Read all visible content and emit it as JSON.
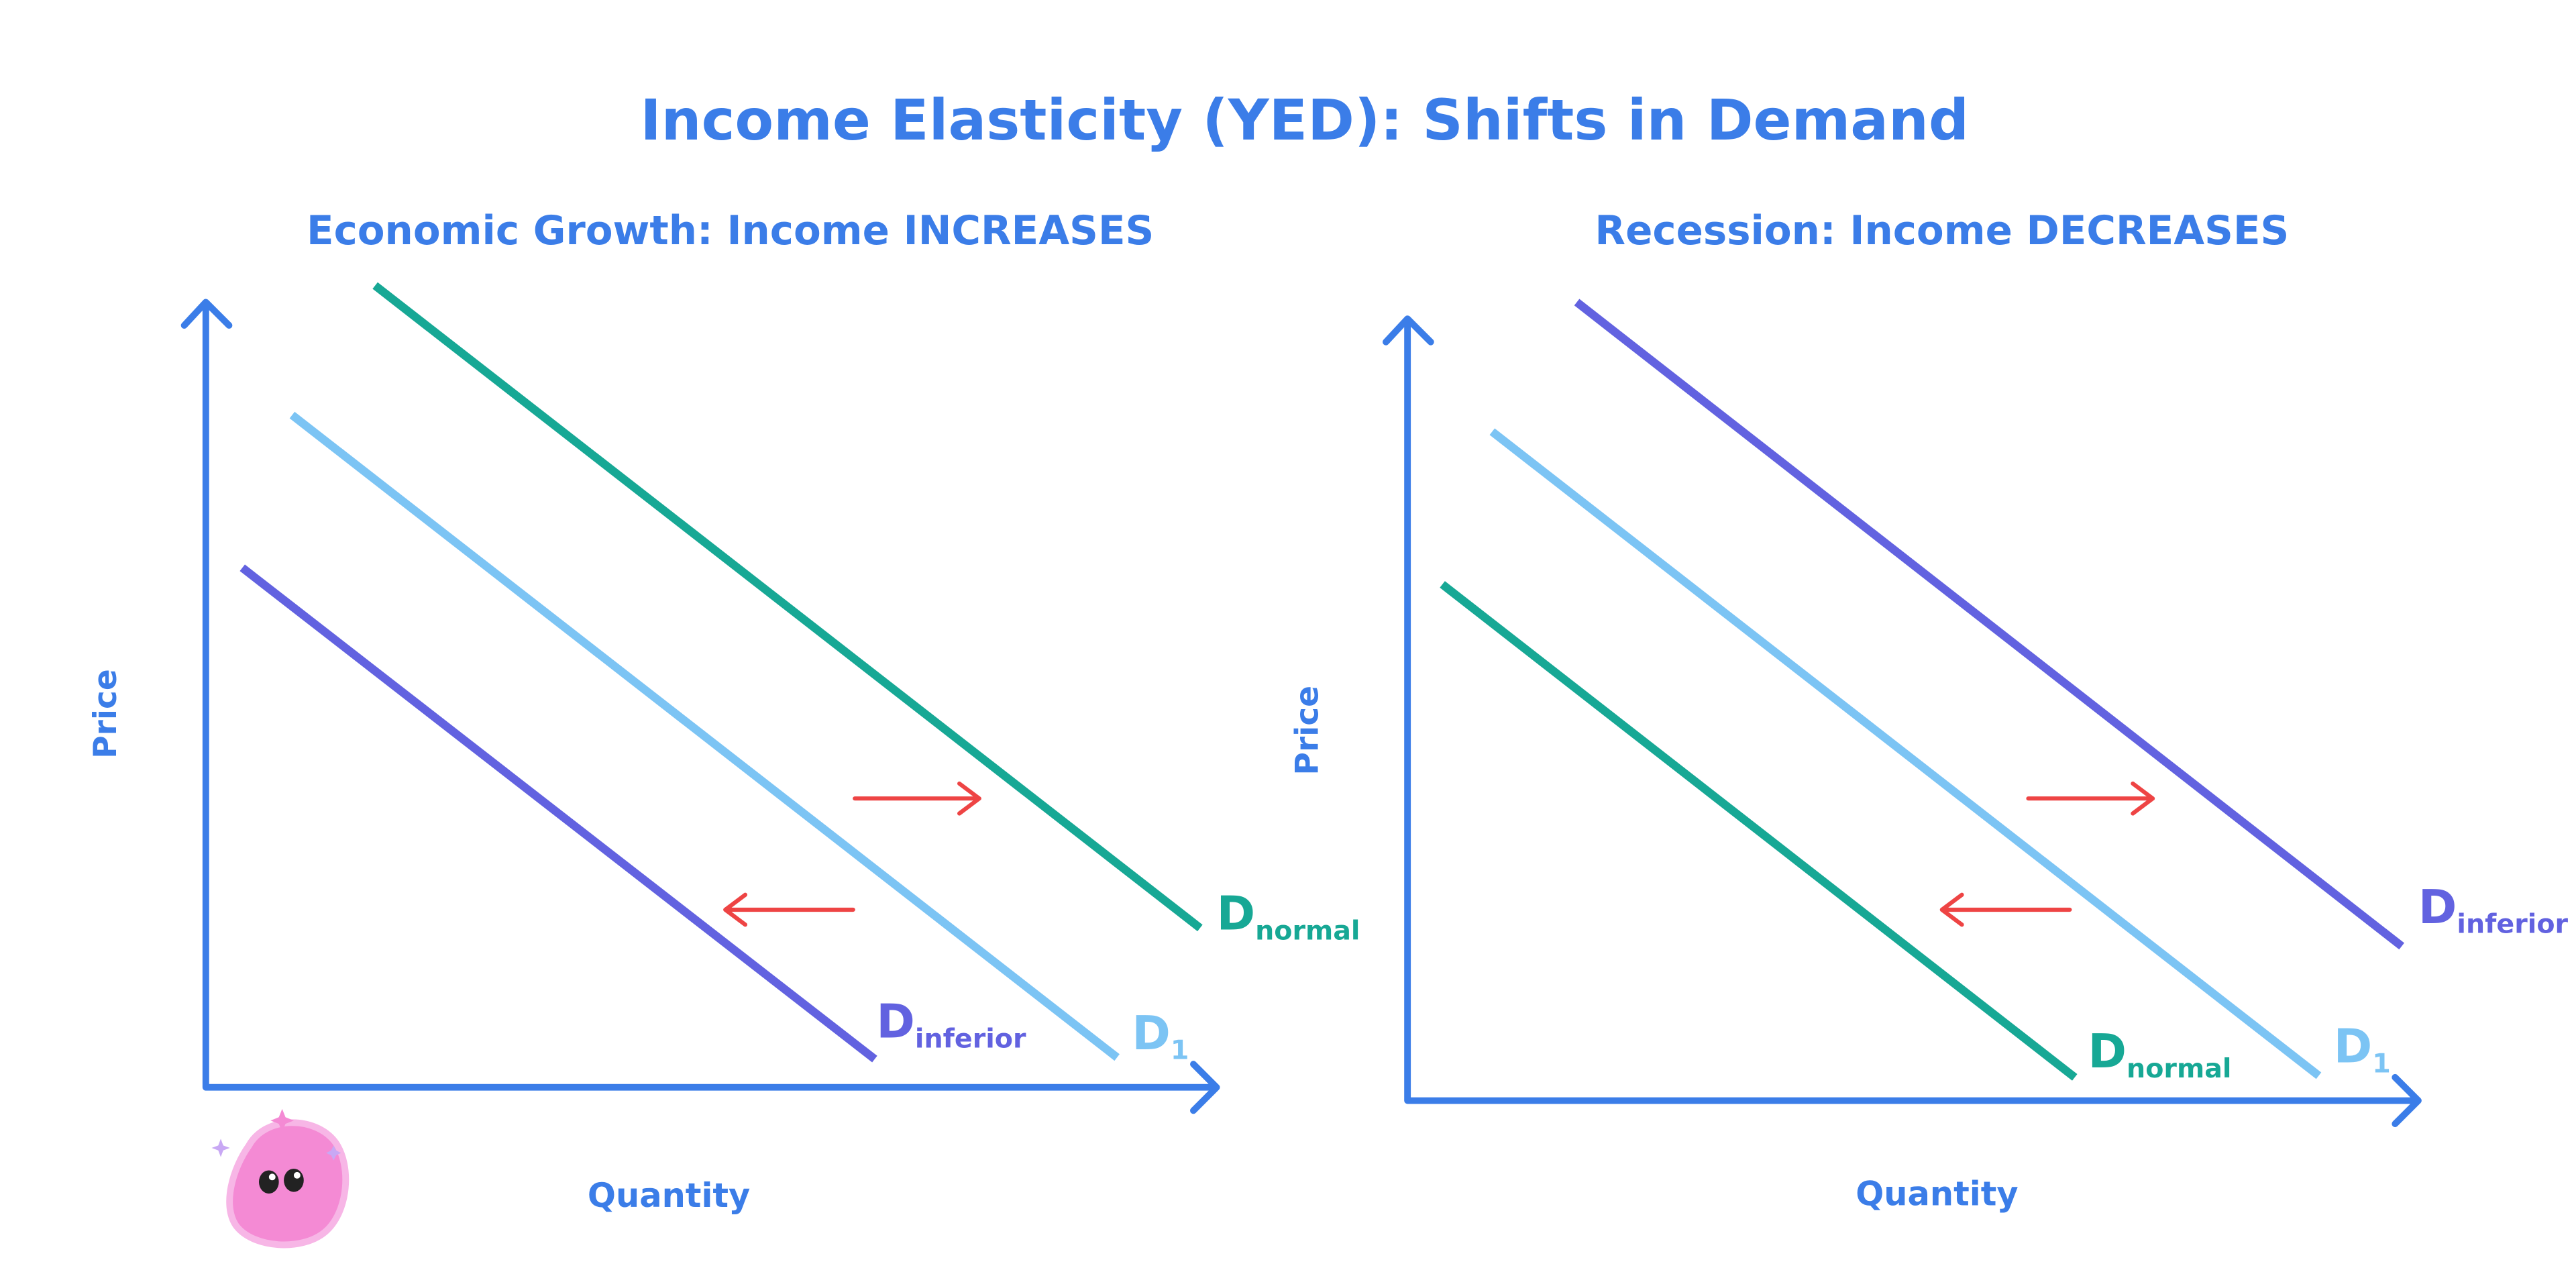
{
  "title": "Income Elasticity (YED): Shifts in Demand",
  "panels": [
    {
      "title": "Economic Growth: Income INCREASES",
      "y_label": "Price",
      "x_label": "Quantity",
      "curves": [
        {
          "main": "D",
          "sub": "normal"
        },
        {
          "main": "D",
          "sub": "1"
        },
        {
          "main": "D",
          "sub": "inferior"
        }
      ]
    },
    {
      "title": "Recession: Income DECREASES",
      "y_label": "Price",
      "x_label": "Quantity",
      "curves": [
        {
          "main": "D",
          "sub": "inferior"
        },
        {
          "main": "D",
          "sub": "1"
        },
        {
          "main": "D",
          "sub": "normal"
        }
      ]
    }
  ]
}
